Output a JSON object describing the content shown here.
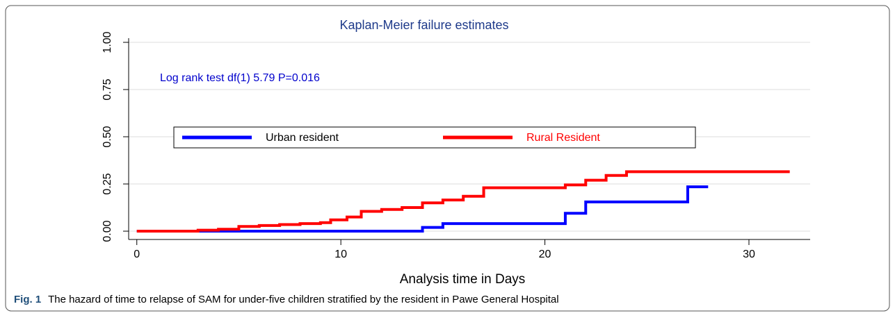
{
  "chart_data": {
    "type": "step",
    "title": "Kaplan-Meier failure estimates",
    "annotation": "Log rank test  df(1)  5.79   P=0.016",
    "xlabel": "Analysis time in Days",
    "xlim": [
      -0.4,
      33
    ],
    "ylim": [
      -0.044,
      1.0
    ],
    "xticks": [
      0,
      10,
      20,
      30
    ],
    "yticks": [
      {
        "value": 0,
        "label": "0.00"
      },
      {
        "value": 0.25,
        "label": "0.25"
      },
      {
        "value": 0.5,
        "label": "0.50"
      },
      {
        "value": 0.75,
        "label": "0.75"
      },
      {
        "value": 1.0,
        "label": "1.00"
      }
    ],
    "grid": true,
    "legend": "center",
    "series": [
      {
        "name": "Urban resident",
        "color": "#0000ff",
        "label_color": "#000000",
        "x": [
          0,
          14,
          15,
          21,
          22,
          27,
          28
        ],
        "values": [
          0,
          0.02,
          0.04,
          0.095,
          0.155,
          0.235,
          0.235
        ]
      },
      {
        "name": "Rural Resident",
        "color": "#ff0000",
        "label_color": "#ff0000",
        "x": [
          0,
          3,
          4,
          5,
          6,
          7,
          8,
          9,
          9.5,
          10.3,
          11,
          12,
          13,
          14,
          15,
          16,
          17,
          21,
          22,
          23,
          24,
          32
        ],
        "values": [
          0,
          0.005,
          0.01,
          0.025,
          0.03,
          0.035,
          0.04,
          0.045,
          0.06,
          0.075,
          0.105,
          0.115,
          0.125,
          0.15,
          0.165,
          0.185,
          0.23,
          0.245,
          0.27,
          0.295,
          0.315,
          0.315
        ]
      }
    ]
  },
  "caption": {
    "label": "Fig. 1",
    "text": "The hazard of time to relapse of SAM for under-five children stratified by the resident in Pawe General Hospital"
  }
}
